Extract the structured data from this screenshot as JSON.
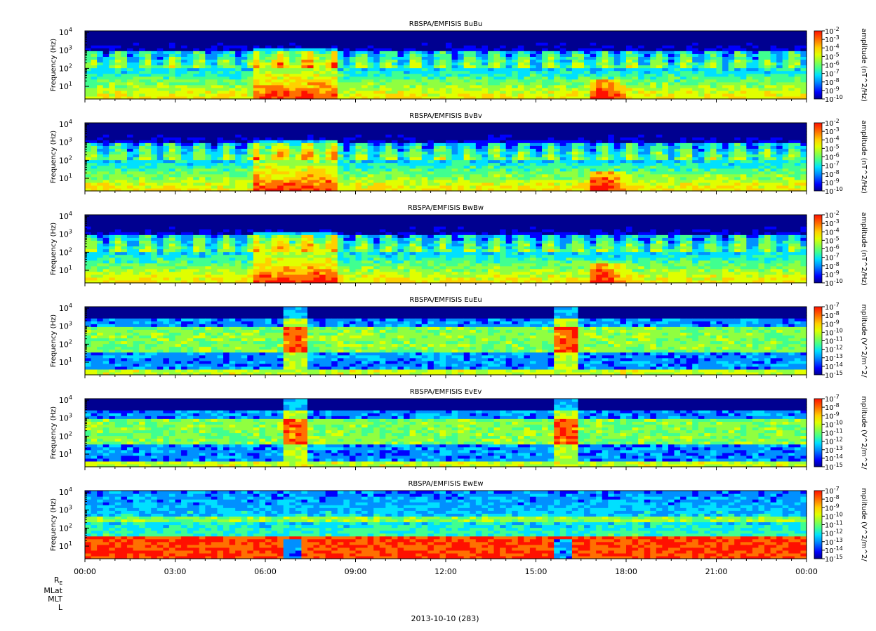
{
  "chart_data": {
    "type": "heatmap",
    "x_ticks": [
      "00:00",
      "03:00",
      "06:00",
      "09:00",
      "12:00",
      "15:00",
      "18:00",
      "21:00",
      "00:00"
    ],
    "x_range_hours": [
      0,
      24
    ],
    "xlabel": "2013-10-10 (283)",
    "ephemeris_labels": [
      "R",
      "E",
      "MLat",
      "MLT",
      "L"
    ],
    "panels": [
      {
        "title": "RBSPA/EMFISIS  BuBu",
        "ylabel": "Frequency (Hz)",
        "y_ticks": [
          [
            "10",
            "1"
          ],
          [
            "10",
            "2"
          ],
          [
            "10",
            "3"
          ],
          [
            "10",
            "4"
          ]
        ],
        "y_range_hz": [
          2,
          12000
        ],
        "log_y": true,
        "colorbar_label": "amplitude (nT^2/Hz)",
        "colorbar_ticks": [
          [
            "10",
            "-2"
          ],
          [
            "10",
            "-3"
          ],
          [
            "10",
            "-4"
          ],
          [
            "10",
            "-5"
          ],
          [
            "10",
            "-6"
          ],
          [
            "10",
            "-7"
          ],
          [
            "10",
            "-8"
          ],
          [
            "10",
            "-9"
          ],
          [
            "10",
            "-10"
          ]
        ],
        "kind": "B"
      },
      {
        "title": "RBSPA/EMFISIS  BvBv",
        "ylabel": "Frequency (Hz)",
        "y_ticks": [
          [
            "10",
            "1"
          ],
          [
            "10",
            "2"
          ],
          [
            "10",
            "3"
          ],
          [
            "10",
            "4"
          ]
        ],
        "y_range_hz": [
          2,
          12000
        ],
        "log_y": true,
        "colorbar_label": "amplitude (nT^2/Hz)",
        "colorbar_ticks": [
          [
            "10",
            "-2"
          ],
          [
            "10",
            "-3"
          ],
          [
            "10",
            "-4"
          ],
          [
            "10",
            "-5"
          ],
          [
            "10",
            "-6"
          ],
          [
            "10",
            "-7"
          ],
          [
            "10",
            "-8"
          ],
          [
            "10",
            "-9"
          ],
          [
            "10",
            "-10"
          ]
        ],
        "kind": "B"
      },
      {
        "title": "RBSPA/EMFISIS  BwBw",
        "ylabel": "Frequency (Hz)",
        "y_ticks": [
          [
            "10",
            "1"
          ],
          [
            "10",
            "2"
          ],
          [
            "10",
            "3"
          ],
          [
            "10",
            "4"
          ]
        ],
        "y_range_hz": [
          2,
          12000
        ],
        "log_y": true,
        "colorbar_label": "amplitude (nT^2/Hz)",
        "colorbar_ticks": [
          [
            "10",
            "-2"
          ],
          [
            "10",
            "-3"
          ],
          [
            "10",
            "-4"
          ],
          [
            "10",
            "-5"
          ],
          [
            "10",
            "-6"
          ],
          [
            "10",
            "-7"
          ],
          [
            "10",
            "-8"
          ],
          [
            "10",
            "-9"
          ],
          [
            "10",
            "-10"
          ]
        ],
        "kind": "B"
      },
      {
        "title": "RBSPA/EMFISIS  EuEu",
        "ylabel": "Frequency (Hz)",
        "y_ticks": [
          [
            "10",
            "1"
          ],
          [
            "10",
            "2"
          ],
          [
            "10",
            "3"
          ],
          [
            "10",
            "4"
          ]
        ],
        "y_range_hz": [
          2,
          12000
        ],
        "log_y": true,
        "colorbar_label": "mplitude (V^2/m^2/",
        "colorbar_ticks": [
          [
            "10",
            "-7"
          ],
          [
            "10",
            "-8"
          ],
          [
            "10",
            "-9"
          ],
          [
            "10",
            "-10"
          ],
          [
            "10",
            "-11"
          ],
          [
            "10",
            "-12"
          ],
          [
            "10",
            "-13"
          ],
          [
            "10",
            "-14"
          ],
          [
            "10",
            "-15"
          ]
        ],
        "kind": "E"
      },
      {
        "title": "RBSPA/EMFISIS  EvEv",
        "ylabel": "Frequency (Hz)",
        "y_ticks": [
          [
            "10",
            "1"
          ],
          [
            "10",
            "2"
          ],
          [
            "10",
            "3"
          ],
          [
            "10",
            "4"
          ]
        ],
        "y_range_hz": [
          2,
          12000
        ],
        "log_y": true,
        "colorbar_label": "mplitude (V^2/m^2/",
        "colorbar_ticks": [
          [
            "10",
            "-7"
          ],
          [
            "10",
            "-8"
          ],
          [
            "10",
            "-9"
          ],
          [
            "10",
            "-10"
          ],
          [
            "10",
            "-11"
          ],
          [
            "10",
            "-12"
          ],
          [
            "10",
            "-13"
          ],
          [
            "10",
            "-14"
          ],
          [
            "10",
            "-15"
          ]
        ],
        "kind": "E"
      },
      {
        "title": "RBSPA/EMFISIS  EwEw",
        "ylabel": "Frequency (Hz)",
        "y_ticks": [
          [
            "10",
            "1"
          ],
          [
            "10",
            "2"
          ],
          [
            "10",
            "3"
          ],
          [
            "10",
            "4"
          ]
        ],
        "y_range_hz": [
          2,
          12000
        ],
        "log_y": true,
        "colorbar_label": "mplitude (V^2/m^2/",
        "colorbar_ticks": [
          [
            "10",
            "-7"
          ],
          [
            "10",
            "-8"
          ],
          [
            "10",
            "-9"
          ],
          [
            "10",
            "-10"
          ],
          [
            "10",
            "-11"
          ],
          [
            "10",
            "-12"
          ],
          [
            "10",
            "-13"
          ],
          [
            "10",
            "-14"
          ],
          [
            "10",
            "-15"
          ]
        ],
        "kind": "Ew"
      }
    ],
    "colormap": [
      "#000090",
      "#0000ff",
      "#0090ff",
      "#00e0ff",
      "#40ff90",
      "#90ff40",
      "#e0ff00",
      "#ffd000",
      "#ff7000",
      "#ff1000"
    ]
  }
}
